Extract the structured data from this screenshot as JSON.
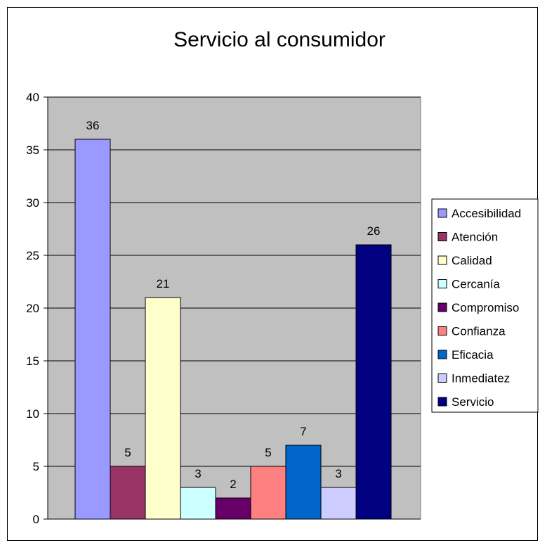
{
  "chart_data": {
    "type": "bar",
    "title": "Servicio al consumidor",
    "xlabel": "",
    "ylabel": "",
    "ylim": [
      0,
      40
    ],
    "yticks": [
      0,
      5,
      10,
      15,
      20,
      25,
      30,
      35,
      40
    ],
    "grid": true,
    "legend_position": "right",
    "plot_background": "#c0c0c0",
    "categories": [
      "Accesibilidad",
      "Atención",
      "Calidad",
      "Cercanía",
      "Compromiso",
      "Confianza",
      "Eficacia",
      "Inmediatez",
      "Servicio"
    ],
    "values": [
      36,
      5,
      21,
      3,
      2,
      5,
      7,
      3,
      26
    ],
    "colors": [
      "#9999ff",
      "#993366",
      "#ffffcc",
      "#ccffff",
      "#660066",
      "#ff8080",
      "#0066cc",
      "#ccccff",
      "#000080"
    ]
  }
}
